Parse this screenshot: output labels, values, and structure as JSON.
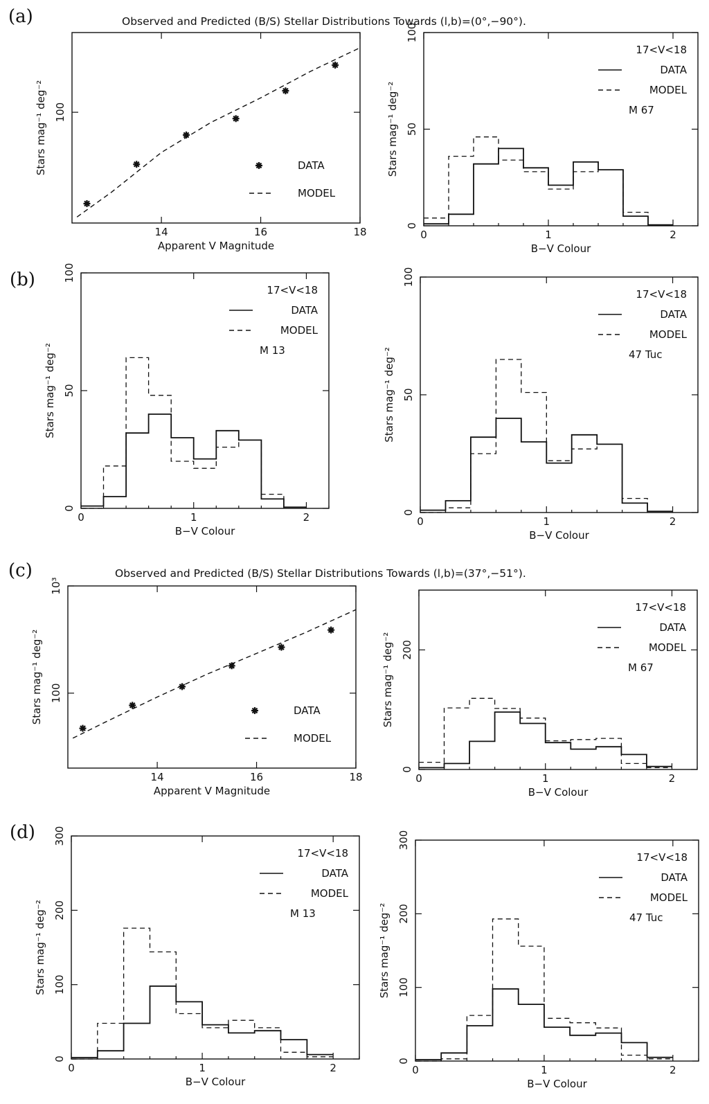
{
  "panel_labels": [
    "(a)",
    "(b)",
    "(c)",
    "(d)"
  ],
  "titles": [
    "Observed and Predicted (B/S) Stellar Distributions Towards (l,b)=(0°,−90°).",
    "Observed and Predicted (B/S) Stellar Distributions Towards (l,b)=(37°,−51°)."
  ],
  "colors": {
    "ink": "#111111",
    "background": "#ffffff"
  },
  "chart_data": [
    {
      "type": "scatter",
      "panel": "(a)",
      "xlabel": "Apparent V Magnitude",
      "ylabel": "Stars mag⁻¹ deg⁻²",
      "xlim": [
        12.2,
        18
      ],
      "ylim": [
        28,
        250
      ],
      "yscale": "log",
      "xticks": [
        14,
        16,
        18
      ],
      "yticks": [
        {
          "value": 100,
          "label": "100"
        }
      ],
      "grid": false,
      "legend_position": "bottom-right",
      "legend": [
        {
          "label": "DATA",
          "style": "points"
        },
        {
          "label": "MODEL",
          "style": "dashed"
        }
      ],
      "series": [
        {
          "name": "DATA",
          "style": "points",
          "x": [
            12.5,
            13.5,
            14.5,
            15.5,
            16.5,
            17.5
          ],
          "y": [
            35,
            55,
            77,
            93,
            128,
            172
          ]
        },
        {
          "name": "MODEL",
          "style": "dashed",
          "x": [
            12.3,
            13,
            14,
            15,
            16,
            17,
            18
          ],
          "y": [
            30,
            40,
            63,
            89,
            118,
            160,
            210
          ]
        }
      ]
    },
    {
      "type": "histogram",
      "panel": "(a)",
      "xlabel": "B−V Colour",
      "ylabel": "Stars mag⁻¹ deg⁻²",
      "xlim": [
        0,
        2.2
      ],
      "ylim": [
        0,
        100
      ],
      "xticks": [
        0,
        1,
        2
      ],
      "yticks": [
        0,
        50,
        100
      ],
      "grid": false,
      "legend_position": "top-right",
      "legend": [
        {
          "label": "DATA",
          "style": "solid"
        },
        {
          "label": "MODEL",
          "style": "dashed"
        }
      ],
      "annotations": [
        "17<V<18",
        "M 67"
      ],
      "bin_edges": [
        0,
        0.2,
        0.4,
        0.6,
        0.8,
        1.0,
        1.2,
        1.4,
        1.6,
        1.8,
        2.0
      ],
      "series": [
        {
          "name": "DATA",
          "style": "solid",
          "values": [
            1,
            6,
            32,
            40,
            30,
            21,
            33,
            29,
            5,
            0.5
          ]
        },
        {
          "name": "MODEL",
          "style": "dashed",
          "values": [
            4,
            36,
            46,
            34,
            28,
            19,
            28,
            29,
            7,
            0.5
          ]
        }
      ]
    },
    {
      "type": "histogram",
      "panel": "(b)",
      "xlabel": "B−V Colour",
      "ylabel": "Stars mag⁻¹ deg⁻²",
      "xlim": [
        0,
        2.2
      ],
      "ylim": [
        0,
        100
      ],
      "xticks": [
        0,
        1,
        2
      ],
      "yticks": [
        0,
        50,
        100
      ],
      "grid": false,
      "legend_position": "top-right",
      "legend": [
        {
          "label": "DATA",
          "style": "solid"
        },
        {
          "label": "MODEL",
          "style": "dashed"
        }
      ],
      "annotations": [
        "17<V<18",
        "M 13"
      ],
      "bin_edges": [
        0,
        0.2,
        0.4,
        0.6,
        0.8,
        1.0,
        1.2,
        1.4,
        1.6,
        1.8,
        2.0
      ],
      "series": [
        {
          "name": "DATA",
          "style": "solid",
          "values": [
            1,
            5,
            32,
            40,
            30,
            21,
            33,
            29,
            4,
            0.5
          ]
        },
        {
          "name": "MODEL",
          "style": "dashed",
          "values": [
            0,
            18,
            64,
            48,
            20,
            17,
            26,
            29,
            6,
            0.5
          ]
        }
      ]
    },
    {
      "type": "histogram",
      "panel": "(b)",
      "xlabel": "B−V Colour",
      "ylabel": "Stars mag⁻¹ deg⁻²",
      "xlim": [
        0,
        2.2
      ],
      "ylim": [
        0,
        100
      ],
      "xticks": [
        0,
        1,
        2
      ],
      "yticks": [
        0,
        50,
        100
      ],
      "grid": false,
      "legend_position": "top-right",
      "legend": [
        {
          "label": "DATA",
          "style": "solid"
        },
        {
          "label": "MODEL",
          "style": "dashed"
        }
      ],
      "annotations": [
        "17<V<18",
        "47 Tuc"
      ],
      "bin_edges": [
        0,
        0.2,
        0.4,
        0.6,
        0.8,
        1.0,
        1.2,
        1.4,
        1.6,
        1.8,
        2.0
      ],
      "series": [
        {
          "name": "DATA",
          "style": "solid",
          "values": [
            1,
            5,
            32,
            40,
            30,
            21,
            33,
            29,
            4,
            0.5
          ]
        },
        {
          "name": "MODEL",
          "style": "dashed",
          "values": [
            0,
            2,
            25,
            65,
            51,
            22,
            27,
            29,
            6,
            0.5
          ]
        }
      ]
    },
    {
      "type": "scatter",
      "panel": "(c)",
      "xlabel": "Apparent V Magnitude",
      "ylabel": "Stars mag⁻¹ deg⁻²",
      "xlim": [
        12.2,
        18
      ],
      "ylim": [
        20,
        1000
      ],
      "yscale": "log",
      "xticks": [
        14,
        16,
        18
      ],
      "yticks": [
        {
          "value": 100,
          "label": "100"
        },
        {
          "value": 1000,
          "label": "10³"
        }
      ],
      "grid": false,
      "legend_position": "bottom-right",
      "legend": [
        {
          "label": "DATA",
          "style": "points"
        },
        {
          "label": "MODEL",
          "style": "dashed"
        }
      ],
      "series": [
        {
          "name": "DATA",
          "style": "points",
          "x": [
            12.5,
            13.5,
            14.5,
            15.5,
            16.5,
            17.5
          ],
          "y": [
            47,
            77,
            115,
            180,
            268,
            388
          ]
        },
        {
          "name": "MODEL",
          "style": "dashed",
          "x": [
            12.3,
            13,
            14,
            15,
            16,
            17,
            18
          ],
          "y": [
            38,
            55,
            92,
            150,
            235,
            370,
            600
          ]
        }
      ]
    },
    {
      "type": "histogram",
      "panel": "(c)",
      "xlabel": "B−V Colour",
      "ylabel": "Stars mag⁻¹ deg⁻²",
      "xlim": [
        0,
        2.2
      ],
      "ylim": [
        0,
        300
      ],
      "xticks": [
        0,
        1,
        2
      ],
      "yticks": [
        0,
        200
      ],
      "grid": false,
      "legend_position": "top-right",
      "legend": [
        {
          "label": "DATA",
          "style": "solid"
        },
        {
          "label": "MODEL",
          "style": "dashed"
        }
      ],
      "annotations": [
        "17<V<18",
        "M 67"
      ],
      "bin_edges": [
        0,
        0.2,
        0.4,
        0.6,
        0.8,
        1.0,
        1.2,
        1.4,
        1.6,
        1.8,
        2.0
      ],
      "series": [
        {
          "name": "DATA",
          "style": "solid",
          "values": [
            3,
            10,
            47,
            96,
            77,
            45,
            34,
            38,
            25,
            5
          ]
        },
        {
          "name": "MODEL",
          "style": "dashed",
          "values": [
            12,
            103,
            119,
            102,
            86,
            48,
            50,
            52,
            10,
            3
          ]
        }
      ]
    },
    {
      "type": "histogram",
      "panel": "(d)",
      "xlabel": "B−V Colour",
      "ylabel": "Stars mag⁻¹ deg⁻²",
      "xlim": [
        0,
        2.2
      ],
      "ylim": [
        0,
        300
      ],
      "xticks": [
        0,
        1,
        2
      ],
      "yticks": [
        0,
        100,
        200,
        300
      ],
      "grid": false,
      "legend_position": "top-right",
      "legend": [
        {
          "label": "DATA",
          "style": "solid"
        },
        {
          "label": "MODEL",
          "style": "dashed"
        }
      ],
      "annotations": [
        "17<V<18",
        "M 13"
      ],
      "bin_edges": [
        0,
        0.2,
        0.4,
        0.6,
        0.8,
        1.0,
        1.2,
        1.4,
        1.6,
        1.8,
        2.0
      ],
      "series": [
        {
          "name": "DATA",
          "style": "solid",
          "values": [
            2,
            11,
            48,
            98,
            77,
            46,
            35,
            38,
            26,
            6
          ]
        },
        {
          "name": "MODEL",
          "style": "dashed",
          "values": [
            0,
            48,
            176,
            144,
            61,
            42,
            52,
            42,
            9,
            3
          ]
        }
      ]
    },
    {
      "type": "histogram",
      "panel": "(d)",
      "xlabel": "B−V Colour",
      "ylabel": "Stars mag⁻¹ deg⁻²",
      "xlim": [
        0,
        2.2
      ],
      "ylim": [
        0,
        300
      ],
      "xticks": [
        0,
        1,
        2
      ],
      "yticks": [
        0,
        100,
        200,
        300
      ],
      "grid": false,
      "legend_position": "top-right",
      "legend": [
        {
          "label": "DATA",
          "style": "solid"
        },
        {
          "label": "MODEL",
          "style": "dashed"
        }
      ],
      "annotations": [
        "17<V<18",
        "47 Tuc"
      ],
      "bin_edges": [
        0,
        0.2,
        0.4,
        0.6,
        0.8,
        1.0,
        1.2,
        1.4,
        1.6,
        1.8,
        2.0
      ],
      "series": [
        {
          "name": "DATA",
          "style": "solid",
          "values": [
            2,
            11,
            48,
            98,
            77,
            46,
            35,
            38,
            25,
            5
          ]
        },
        {
          "name": "MODEL",
          "style": "dashed",
          "values": [
            0,
            3,
            62,
            193,
            156,
            58,
            52,
            45,
            8,
            3
          ]
        }
      ]
    }
  ]
}
